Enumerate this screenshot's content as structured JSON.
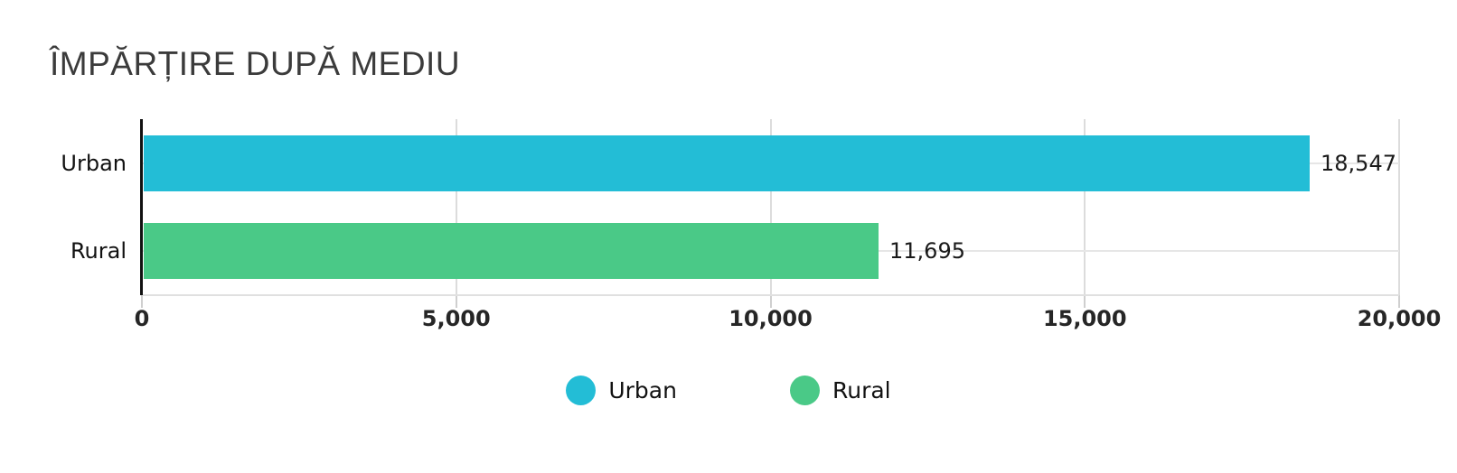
{
  "title": "ÎMPĂRȚIRE DUPĂ MEDIU",
  "colors": {
    "urban": "#23BDD6",
    "rural": "#4AC987",
    "axis": "#111111",
    "gridline": "#dcdcdc",
    "text": "#1a1a1a"
  },
  "chart_data": {
    "type": "bar",
    "orientation": "horizontal",
    "title": "ÎMPĂRȚIRE DUPĂ MEDIU",
    "categories": [
      "Urban",
      "Rural"
    ],
    "values": [
      18547,
      11695
    ],
    "value_labels": [
      "18,547",
      "11,695"
    ],
    "bar_colors": [
      "#23BDD6",
      "#4AC987"
    ],
    "xlim": [
      0,
      20000
    ],
    "x_ticks": [
      0,
      5000,
      10000,
      15000,
      20000
    ],
    "x_tick_labels": [
      "0",
      "5,000",
      "10,000",
      "15,000",
      "20,000"
    ],
    "grid": true,
    "legend": {
      "position": "bottom",
      "items": [
        {
          "label": "Urban",
          "color": "#23BDD6"
        },
        {
          "label": "Rural",
          "color": "#4AC987"
        }
      ]
    }
  }
}
